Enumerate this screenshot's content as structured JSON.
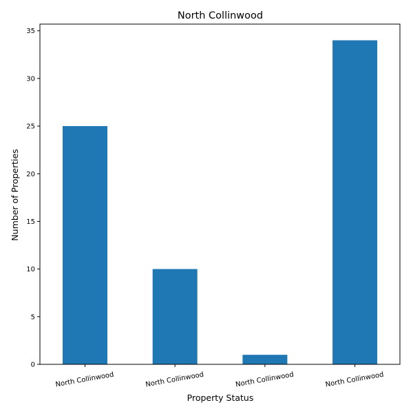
{
  "chart_data": {
    "type": "bar",
    "title": "North Collinwood",
    "xlabel": "Property Status",
    "ylabel": "Number of Properties",
    "categories": [
      "North Collinwood",
      "North Collinwood",
      "North Collinwood",
      "North Collinwood"
    ],
    "values": [
      25,
      10,
      1,
      34
    ],
    "ylim": [
      0,
      35.7
    ],
    "yticks": [
      0,
      5,
      10,
      15,
      20,
      25,
      30,
      35
    ],
    "grid": false,
    "legend": "none",
    "bar_color": "#1f77b4"
  }
}
